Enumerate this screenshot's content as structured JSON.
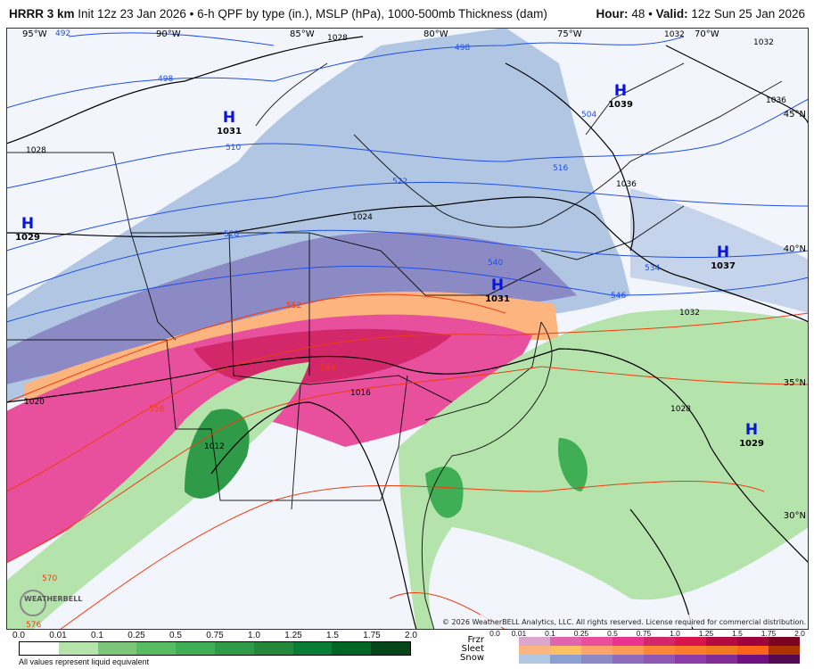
{
  "header": {
    "model": "HRRR 3 km",
    "init": "Init 12z 23 Jan 2026",
    "desc": "6-h QPF by type (in.), MSLP (hPa), 1000-500mb Thickness (dam)",
    "hour_label": "Hour:",
    "hour": "48",
    "valid_label": "Valid:",
    "valid": "12z Sun 25 Jan 2026",
    "sep": "•"
  },
  "map": {
    "lon_labels": [
      "95°W",
      "90°W",
      "85°W",
      "80°W",
      "75°W",
      "70°W"
    ],
    "lat_labels": [
      "45°N",
      "40°N",
      "35°N",
      "30°N"
    ],
    "highs": [
      {
        "letter": "H",
        "value": "1029"
      },
      {
        "letter": "H",
        "value": "1031"
      },
      {
        "letter": "H",
        "value": "1039"
      },
      {
        "letter": "H",
        "value": "1031"
      },
      {
        "letter": "H",
        "value": "1037"
      },
      {
        "letter": "H",
        "value": "1029"
      }
    ],
    "thickness_labels": [
      "492",
      "498",
      "498",
      "504",
      "510",
      "516",
      "522",
      "528",
      "534",
      "540",
      "546",
      "552",
      "558",
      "564",
      "570",
      "576"
    ],
    "mslp_labels": [
      "1028",
      "1032",
      "1032",
      "1036",
      "1036",
      "1024",
      "1028",
      "1032",
      "1028",
      "1020",
      "1012",
      "1016"
    ],
    "copyright": "© 2026 WeatherBELL Analytics, LLC. All rights reserved. License required for commercial distribution.",
    "logo": "WeatherBELL"
  },
  "legend": {
    "rain_ticks": [
      "0.0",
      "0.01",
      "0.1",
      "0.25",
      "0.5",
      "0.75",
      "1.0",
      "1.25",
      "1.5",
      "1.75",
      "2.0"
    ],
    "rain_colors": [
      "#ffffff",
      "#b5e3ac",
      "#7cc67a",
      "#57bd62",
      "#3fae55",
      "#2f9a48",
      "#23883c",
      "#097c35",
      "#006622",
      "#04461a"
    ],
    "note": "All values represent liquid equivalent",
    "ptype_ticks": [
      "0.0",
      "0.01",
      "0.1",
      "0.25",
      "0.5",
      "0.75",
      "1.0",
      "1.25",
      "1.5",
      "1.75",
      "2.0"
    ],
    "types": [
      {
        "label": "Frzr",
        "colors": [
          "#dba7cd",
          "#de65ae",
          "#e8509e",
          "#e83490",
          "#d2286a",
          "#d8154c",
          "#b30a42",
          "#9d033c",
          "#7a0321"
        ]
      },
      {
        "label": "Sleet",
        "colors": [
          "#fdb57f",
          "#fdc063",
          "#fda46a",
          "#fc9b55",
          "#fd8738",
          "#fc7e2b",
          "#f17a1f",
          "#fe6419",
          "#ab3300"
        ]
      },
      {
        "label": "Snow",
        "colors": [
          "#b0c6e3",
          "#8c9fd0",
          "#8c8ac4",
          "#8e6bbb",
          "#8e58b2",
          "#8d3ba8",
          "#822c95",
          "#701180",
          "#530850"
        ]
      }
    ]
  },
  "colors": {
    "background": "#f3f5fc",
    "thickness_cold": "#1f4ee6",
    "thickness_warm": "#f03c10",
    "mslp": "#000000",
    "high": "#0a14d8"
  }
}
